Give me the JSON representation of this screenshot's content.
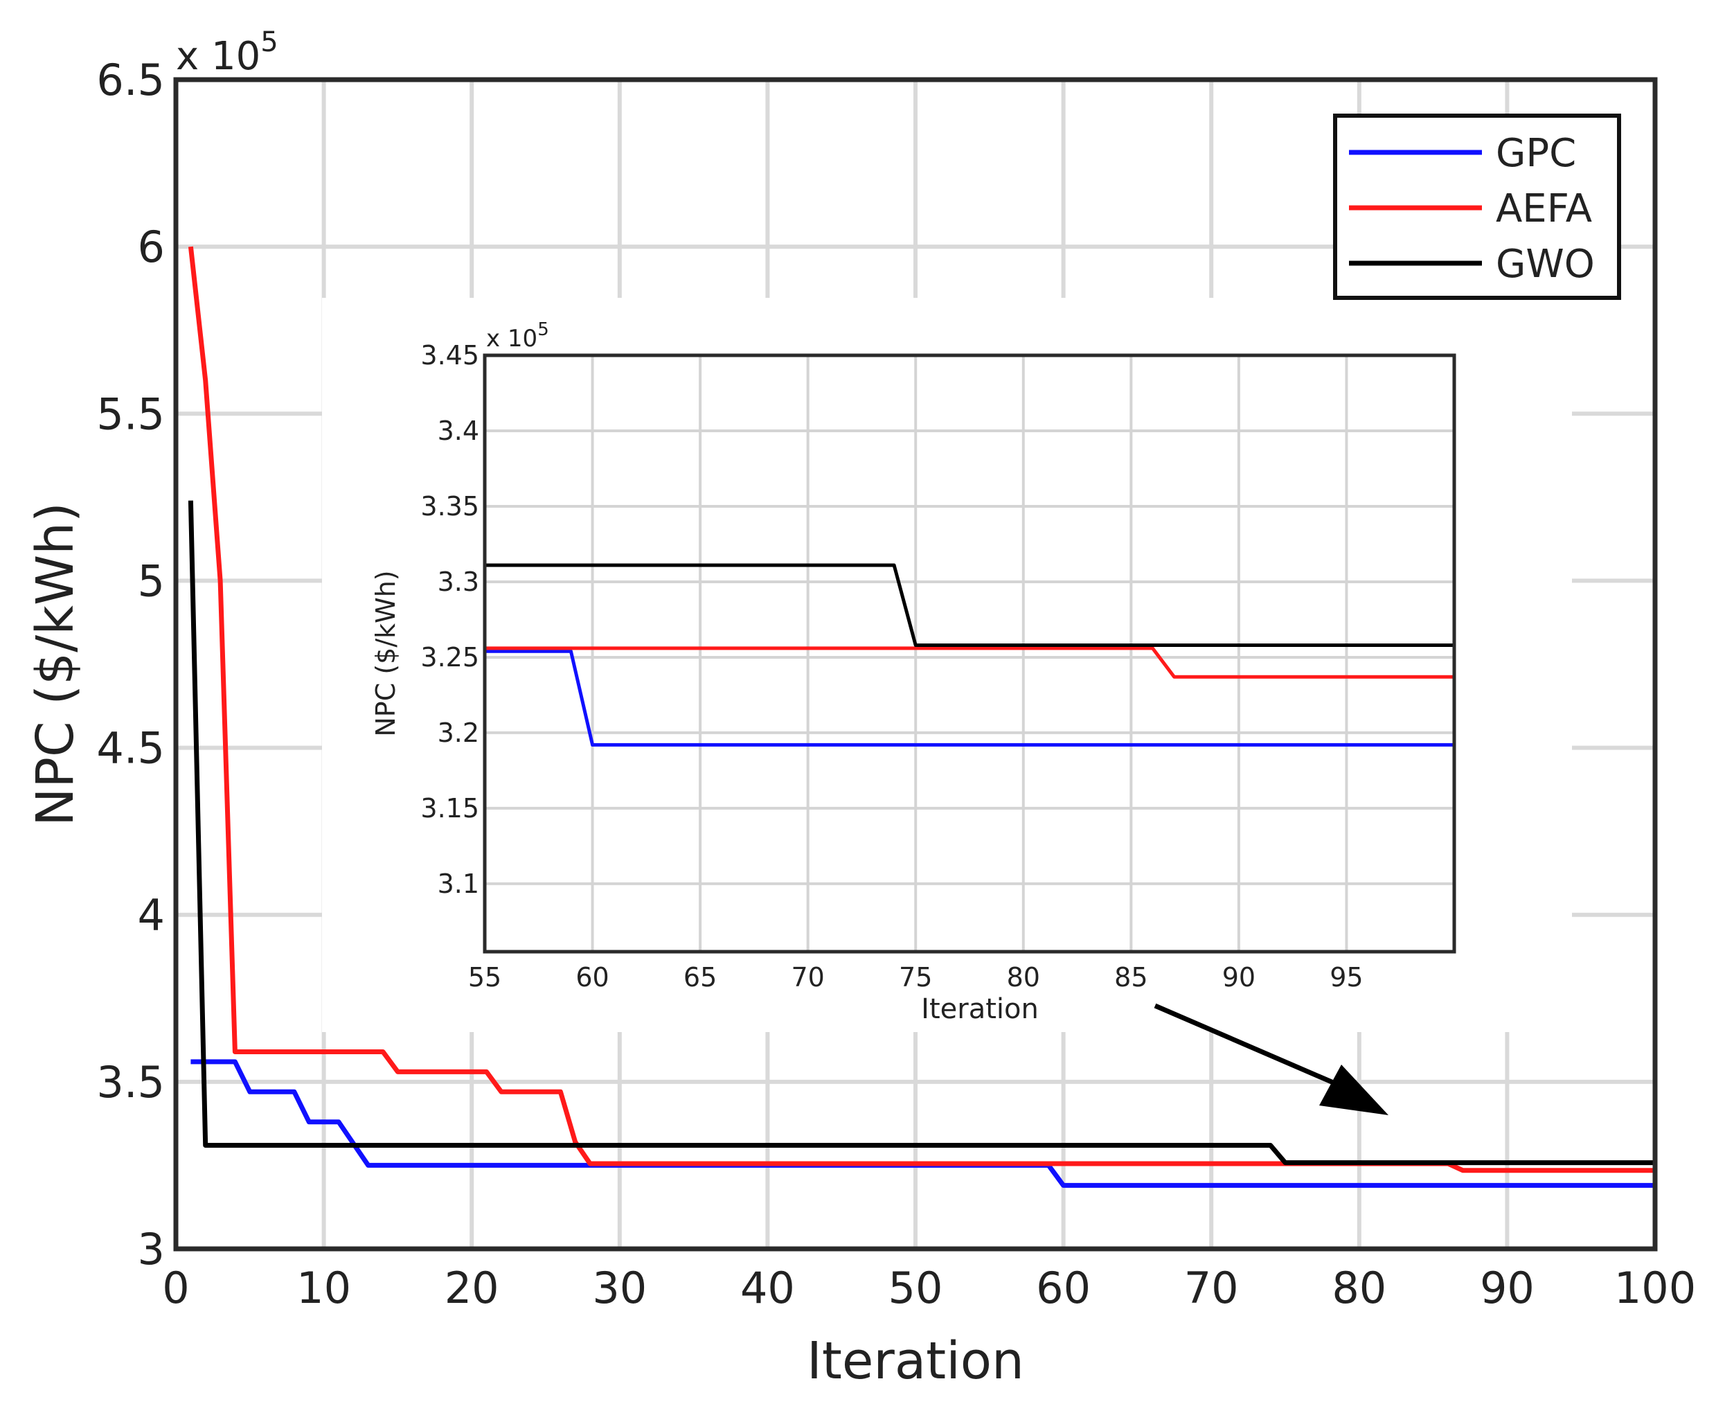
{
  "chart_data": [
    {
      "type": "line",
      "role": "main",
      "xlabel": "Iteration",
      "ylabel": "NPC ($/kWh)",
      "exponent_label": "x 10^5",
      "xlim": [
        0,
        100
      ],
      "ylim": [
        3,
        6.5
      ],
      "xticks": [
        "0",
        "10",
        "20",
        "30",
        "40",
        "50",
        "60",
        "70",
        "80",
        "90",
        "100"
      ],
      "yticks": [
        "3",
        "3.5",
        "4",
        "4.5",
        "5",
        "5.5",
        "6",
        "6.5"
      ],
      "grid": true,
      "legend_position": "top-right",
      "series": [
        {
          "name": "GPC",
          "color": "#1010ff",
          "x": [
            1,
            4,
            5,
            8,
            9,
            11,
            13,
            59,
            60,
            100
          ],
          "y": [
            3.56,
            3.56,
            3.47,
            3.47,
            3.38,
            3.38,
            3.25,
            3.25,
            3.19,
            3.19
          ]
        },
        {
          "name": "AEFA",
          "color": "#ff1a1a",
          "x": [
            1,
            2,
            3,
            4,
            14,
            15,
            21,
            22,
            26,
            27,
            28,
            86,
            87,
            100
          ],
          "y": [
            6.0,
            5.6,
            5.0,
            3.59,
            3.59,
            3.53,
            3.53,
            3.47,
            3.47,
            3.32,
            3.255,
            3.255,
            3.235,
            3.235
          ]
        },
        {
          "name": "GWO",
          "color": "#000000",
          "x": [
            1,
            2,
            74,
            75,
            100
          ],
          "y": [
            5.24,
            3.31,
            3.31,
            3.258,
            3.258
          ]
        }
      ]
    },
    {
      "type": "line",
      "role": "inset",
      "xlabel": "Iteration",
      "ylabel": "NPC ($/kWh)",
      "exponent_label": "x 10^5",
      "xlim": [
        55,
        100
      ],
      "ylim": [
        3.055,
        3.45
      ],
      "xticks": [
        "55",
        "60",
        "65",
        "70",
        "75",
        "80",
        "85",
        "90",
        "95"
      ],
      "yticks": [
        "3.1",
        "3.15",
        "3.2",
        "3.25",
        "3.3",
        "3.35",
        "3.4",
        "3.45"
      ],
      "grid": true,
      "series": [
        {
          "name": "GPC",
          "color": "#1010ff",
          "x": [
            55,
            59,
            60,
            100
          ],
          "y": [
            3.254,
            3.254,
            3.192,
            3.192
          ]
        },
        {
          "name": "AEFA",
          "color": "#ff1a1a",
          "x": [
            55,
            86,
            87,
            100
          ],
          "y": [
            3.256,
            3.256,
            3.237,
            3.237
          ]
        },
        {
          "name": "GWO",
          "color": "#000000",
          "x": [
            55,
            74,
            75,
            100
          ],
          "y": [
            3.311,
            3.311,
            3.258,
            3.258
          ]
        }
      ]
    }
  ]
}
